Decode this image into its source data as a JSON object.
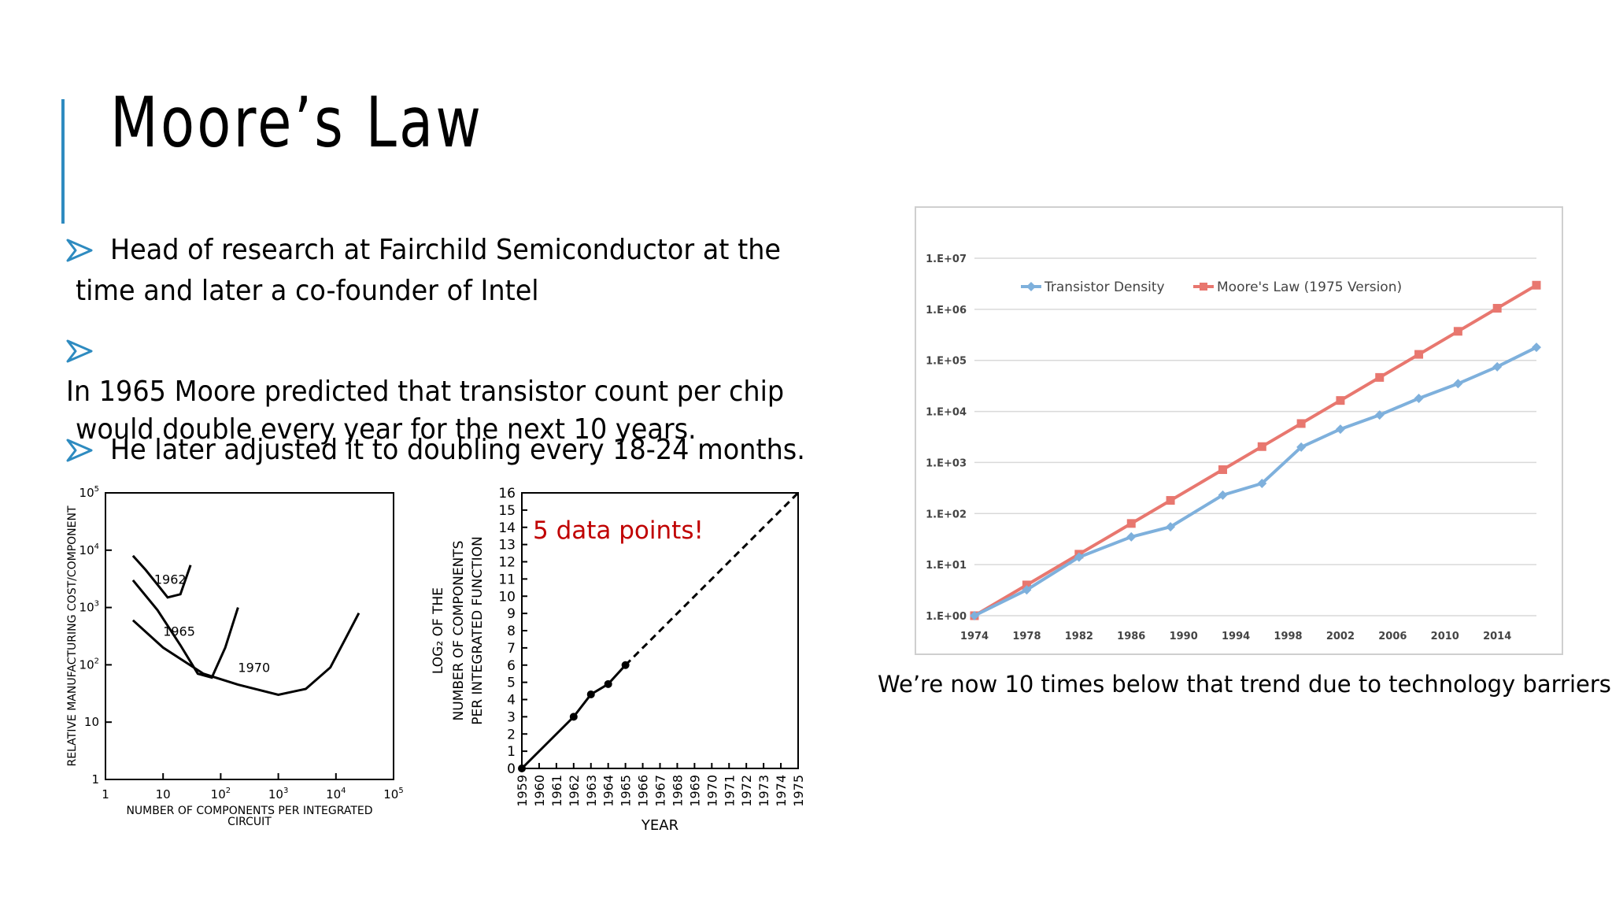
{
  "slide": {
    "title": "Moore’s Law",
    "accent_color": "#2E8BC0",
    "bullets": [
      {
        "line1": "Head of research at Fairchild Semiconductor at the",
        "line2": "time and later a co-founder of Intel"
      },
      {
        "line1": "In 1965 Moore predicted that transistor count per chip",
        "line2": "would double every year for the next 10 years."
      },
      {
        "line1": "He later adjusted it to doubling every 18-24 months.",
        "line2": ""
      }
    ],
    "bullet_icon": "arrow-bullet-icon",
    "caption": "We’re now 10 times below that trend due to technology barriers."
  },
  "chart_data": [
    {
      "type": "line",
      "ylabel": "RELATIVE MANUFACTURING COST/COMPONENT",
      "xlabel_line1": "NUMBER OF COMPONENTS PER INTEGRATED",
      "xlabel_line2": "CIRCUIT",
      "x_scale": "log",
      "y_scale": "log",
      "xlim": [
        1,
        100000
      ],
      "ylim": [
        1,
        100000
      ],
      "x_ticks": [
        {
          "value": 1,
          "base": "1",
          "exp": ""
        },
        {
          "value": 10,
          "base": "10",
          "exp": ""
        },
        {
          "value": 100,
          "base": "10",
          "exp": "2"
        },
        {
          "value": 1000,
          "base": "10",
          "exp": "3"
        },
        {
          "value": 10000,
          "base": "10",
          "exp": "4"
        },
        {
          "value": 100000,
          "base": "10",
          "exp": "5"
        }
      ],
      "y_ticks": [
        {
          "value": 1,
          "base": "1",
          "exp": ""
        },
        {
          "value": 10,
          "base": "10",
          "exp": ""
        },
        {
          "value": 100,
          "base": "10",
          "exp": "2"
        },
        {
          "value": 1000,
          "base": "10",
          "exp": "3"
        },
        {
          "value": 10000,
          "base": "10",
          "exp": "4"
        },
        {
          "value": 100000,
          "base": "10",
          "exp": "5"
        }
      ],
      "series": [
        {
          "name": "1962",
          "x": [
            3,
            5,
            8,
            12,
            20,
            30
          ],
          "y": [
            8000,
            4500,
            2500,
            1500,
            1700,
            5500
          ]
        },
        {
          "name": "1965",
          "x": [
            3,
            8,
            20,
            40,
            70,
            120,
            200
          ],
          "y": [
            3000,
            900,
            220,
            70,
            60,
            200,
            1000
          ]
        },
        {
          "name": "1970",
          "x": [
            3,
            10,
            50,
            200,
            1000,
            3000,
            8000,
            15000,
            25000
          ],
          "y": [
            600,
            200,
            70,
            45,
            30,
            38,
            90,
            300,
            800
          ]
        }
      ]
    },
    {
      "type": "line",
      "annotation": "5 data points!",
      "annotation_color": "#C00000",
      "ylabel_line1": "LOG₂ OF THE",
      "ylabel_line2": "NUMBER OF COMPONENTS",
      "ylabel_line3": "PER INTEGRATED FUNCTION",
      "xlabel": "YEAR",
      "xlim": [
        1959,
        1975
      ],
      "ylim": [
        0,
        16
      ],
      "x_ticks": [
        "1959",
        "1960",
        "1961",
        "1962",
        "1963",
        "1964",
        "1965",
        "1966",
        "1967",
        "1968",
        "1969",
        "1970",
        "1971",
        "1972",
        "1973",
        "1974",
        "1975"
      ],
      "y_ticks": [
        "0",
        "1",
        "2",
        "3",
        "4",
        "5",
        "6",
        "7",
        "8",
        "9",
        "10",
        "11",
        "12",
        "13",
        "14",
        "15",
        "16"
      ],
      "series": [
        {
          "style": "solid",
          "x": [
            1959,
            1962,
            1963,
            1964,
            1965
          ],
          "y": [
            0,
            3,
            4.3,
            4.9,
            6
          ]
        },
        {
          "style": "dashed",
          "x": [
            1965,
            1975
          ],
          "y": [
            6,
            16
          ]
        }
      ]
    },
    {
      "type": "line",
      "y_scale": "log",
      "ylim": [
        1,
        10000000
      ],
      "xlim": [
        1974,
        2017
      ],
      "y_ticks": [
        "1.E+00",
        "1.E+01",
        "1.E+02",
        "1.E+03",
        "1.E+04",
        "1.E+05",
        "1.E+06",
        "1.E+07"
      ],
      "x_ticks": [
        "1974",
        "1978",
        "1982",
        "1986",
        "1990",
        "1994",
        "1998",
        "2002",
        "2006",
        "2010",
        "2014"
      ],
      "grid": true,
      "legend": "top",
      "series": [
        {
          "name": "Transistor Density",
          "color": "#7EB0DC",
          "x": [
            1974,
            1978,
            1982,
            1986,
            1989,
            1993,
            1996,
            1999,
            2002,
            2005,
            2008,
            2011,
            2014,
            2017
          ],
          "y": [
            1,
            3.2,
            14,
            35,
            55,
            230,
            390,
            2000,
            4500,
            8500,
            18000,
            35000,
            75000,
            180000
          ]
        },
        {
          "name": "Moore's Law (1975 Version)",
          "color": "#E8776F",
          "x": [
            1974,
            1978,
            1982,
            1986,
            1989,
            1993,
            1996,
            1999,
            2002,
            2005,
            2008,
            2011,
            2014,
            2017
          ],
          "y": [
            1,
            4,
            16,
            64,
            181,
            724,
            2048,
            5793,
            16384,
            46341,
            131072,
            370728,
            1048576,
            2965820
          ]
        }
      ]
    }
  ]
}
